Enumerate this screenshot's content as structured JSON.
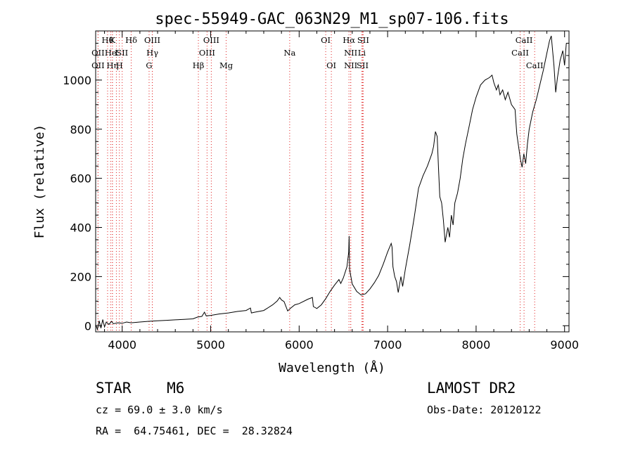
{
  "chart_data": {
    "type": "line",
    "title": "spec-55949-GAC_063N29_M1_sp07-106.fits",
    "xlabel": "Wavelength (Å)",
    "ylabel": "Flux (relative)",
    "xlim": [
      3700,
      9050
    ],
    "ylim": [
      -25,
      1200
    ],
    "xticks": [
      4000,
      5000,
      6000,
      7000,
      8000,
      9000
    ],
    "yticks": [
      0,
      200,
      400,
      600,
      800,
      1000
    ],
    "grid": false,
    "series": [
      {
        "color": "#000000",
        "points": [
          [
            3700,
            5
          ],
          [
            3720,
            -15
          ],
          [
            3740,
            20
          ],
          [
            3760,
            -10
          ],
          [
            3780,
            25
          ],
          [
            3800,
            -5
          ],
          [
            3820,
            15
          ],
          [
            3850,
            5
          ],
          [
            3880,
            18
          ],
          [
            3900,
            8
          ],
          [
            3950,
            12
          ],
          [
            4000,
            10
          ],
          [
            4050,
            15
          ],
          [
            4100,
            12
          ],
          [
            4200,
            15
          ],
          [
            4300,
            18
          ],
          [
            4400,
            20
          ],
          [
            4500,
            22
          ],
          [
            4600,
            24
          ],
          [
            4700,
            26
          ],
          [
            4800,
            28
          ],
          [
            4850,
            35
          ],
          [
            4900,
            38
          ],
          [
            4930,
            55
          ],
          [
            4950,
            40
          ],
          [
            5000,
            42
          ],
          [
            5100,
            48
          ],
          [
            5200,
            52
          ],
          [
            5300,
            58
          ],
          [
            5400,
            62
          ],
          [
            5450,
            72
          ],
          [
            5460,
            52
          ],
          [
            5500,
            55
          ],
          [
            5600,
            62
          ],
          [
            5700,
            85
          ],
          [
            5750,
            100
          ],
          [
            5780,
            115
          ],
          [
            5800,
            105
          ],
          [
            5830,
            98
          ],
          [
            5870,
            60
          ],
          [
            5900,
            70
          ],
          [
            5950,
            85
          ],
          [
            6000,
            90
          ],
          [
            6100,
            108
          ],
          [
            6150,
            115
          ],
          [
            6160,
            78
          ],
          [
            6200,
            70
          ],
          [
            6250,
            85
          ],
          [
            6300,
            110
          ],
          [
            6350,
            140
          ],
          [
            6400,
            165
          ],
          [
            6450,
            188
          ],
          [
            6470,
            172
          ],
          [
            6500,
            195
          ],
          [
            6540,
            240
          ],
          [
            6560,
            300
          ],
          [
            6565,
            365
          ],
          [
            6570,
            230
          ],
          [
            6600,
            170
          ],
          [
            6650,
            140
          ],
          [
            6700,
            125
          ],
          [
            6750,
            130
          ],
          [
            6800,
            150
          ],
          [
            6850,
            175
          ],
          [
            6900,
            205
          ],
          [
            6950,
            250
          ],
          [
            7000,
            300
          ],
          [
            7040,
            335
          ],
          [
            7050,
            320
          ],
          [
            7060,
            240
          ],
          [
            7080,
            200
          ],
          [
            7100,
            180
          ],
          [
            7120,
            135
          ],
          [
            7150,
            200
          ],
          [
            7170,
            160
          ],
          [
            7200,
            230
          ],
          [
            7250,
            330
          ],
          [
            7300,
            440
          ],
          [
            7350,
            560
          ],
          [
            7400,
            610
          ],
          [
            7450,
            650
          ],
          [
            7500,
            700
          ],
          [
            7520,
            730
          ],
          [
            7540,
            790
          ],
          [
            7560,
            770
          ],
          [
            7575,
            640
          ],
          [
            7590,
            525
          ],
          [
            7610,
            500
          ],
          [
            7630,
            430
          ],
          [
            7650,
            340
          ],
          [
            7680,
            400
          ],
          [
            7700,
            360
          ],
          [
            7720,
            450
          ],
          [
            7740,
            410
          ],
          [
            7760,
            500
          ],
          [
            7790,
            540
          ],
          [
            7820,
            600
          ],
          [
            7850,
            680
          ],
          [
            7880,
            740
          ],
          [
            7920,
            810
          ],
          [
            7960,
            880
          ],
          [
            8000,
            930
          ],
          [
            8050,
            980
          ],
          [
            8100,
            1000
          ],
          [
            8150,
            1010
          ],
          [
            8180,
            1020
          ],
          [
            8200,
            990
          ],
          [
            8230,
            960
          ],
          [
            8250,
            980
          ],
          [
            8270,
            940
          ],
          [
            8300,
            960
          ],
          [
            8330,
            920
          ],
          [
            8360,
            950
          ],
          [
            8400,
            900
          ],
          [
            8440,
            880
          ],
          [
            8460,
            780
          ],
          [
            8480,
            730
          ],
          [
            8500,
            680
          ],
          [
            8520,
            645
          ],
          [
            8540,
            700
          ],
          [
            8560,
            660
          ],
          [
            8580,
            740
          ],
          [
            8600,
            800
          ],
          [
            8640,
            870
          ],
          [
            8680,
            920
          ],
          [
            8720,
            980
          ],
          [
            8760,
            1040
          ],
          [
            8800,
            1110
          ],
          [
            8830,
            1160
          ],
          [
            8850,
            1180
          ],
          [
            8880,
            1060
          ],
          [
            8900,
            950
          ],
          [
            8920,
            1010
          ],
          [
            8950,
            1080
          ],
          [
            8980,
            1120
          ],
          [
            9000,
            1060
          ],
          [
            9020,
            1150
          ]
        ]
      }
    ],
    "line_markers": [
      {
        "x": 3835,
        "label": "Hθ",
        "row": 0
      },
      {
        "x": 3889,
        "label": "K",
        "row": 0
      },
      {
        "x": 4102,
        "label": "Hδ",
        "row": 0
      },
      {
        "x": 4340,
        "label": "OIII",
        "row": 0
      },
      {
        "x": 5007,
        "label": "OIII",
        "row": 0
      },
      {
        "x": 6300,
        "label": "OI",
        "row": 0
      },
      {
        "x": 6563,
        "label": "Hα",
        "row": 0
      },
      {
        "x": 6724,
        "label": "SII",
        "row": 0
      },
      {
        "x": 8542,
        "label": "CaII",
        "row": 0
      },
      {
        "x": 3727,
        "label": "OII",
        "row": 1
      },
      {
        "x": 3869,
        "label": "He",
        "row": 1
      },
      {
        "x": 3934,
        "label": "I",
        "row": 1
      },
      {
        "x": 4000,
        "label": "SII",
        "row": 1
      },
      {
        "x": 4341,
        "label": "Hγ",
        "row": 1
      },
      {
        "x": 4959,
        "label": "OIII",
        "row": 1
      },
      {
        "x": 5893,
        "label": "Na",
        "row": 1
      },
      {
        "x": 6583,
        "label": "NII",
        "row": 1
      },
      {
        "x": 6708,
        "label": "Li",
        "row": 1
      },
      {
        "x": 8498,
        "label": "CaII",
        "row": 1
      },
      {
        "x": 3727,
        "label": "OII",
        "row": 2
      },
      {
        "x": 3890,
        "label": "Hη",
        "row": 2
      },
      {
        "x": 3968,
        "label": "H",
        "row": 2
      },
      {
        "x": 4304,
        "label": "G",
        "row": 2
      },
      {
        "x": 4861,
        "label": "Hβ",
        "row": 2
      },
      {
        "x": 5175,
        "label": "Mg",
        "row": 2
      },
      {
        "x": 6364,
        "label": "OI",
        "row": 2
      },
      {
        "x": 6583,
        "label": "NII",
        "row": 2
      },
      {
        "x": 6717,
        "label": "SII",
        "row": 2
      },
      {
        "x": 8662,
        "label": "CaII",
        "row": 2
      }
    ],
    "marker_color": "#e02020"
  },
  "info": {
    "class_line": "STAR    M6",
    "survey": "LAMOST DR2",
    "cz": "cz = 69.0 ± 3.0 km/s",
    "obs_date": "Obs-Date: 20120122",
    "coords": "RA =  64.75461, DEC =  28.32824"
  }
}
